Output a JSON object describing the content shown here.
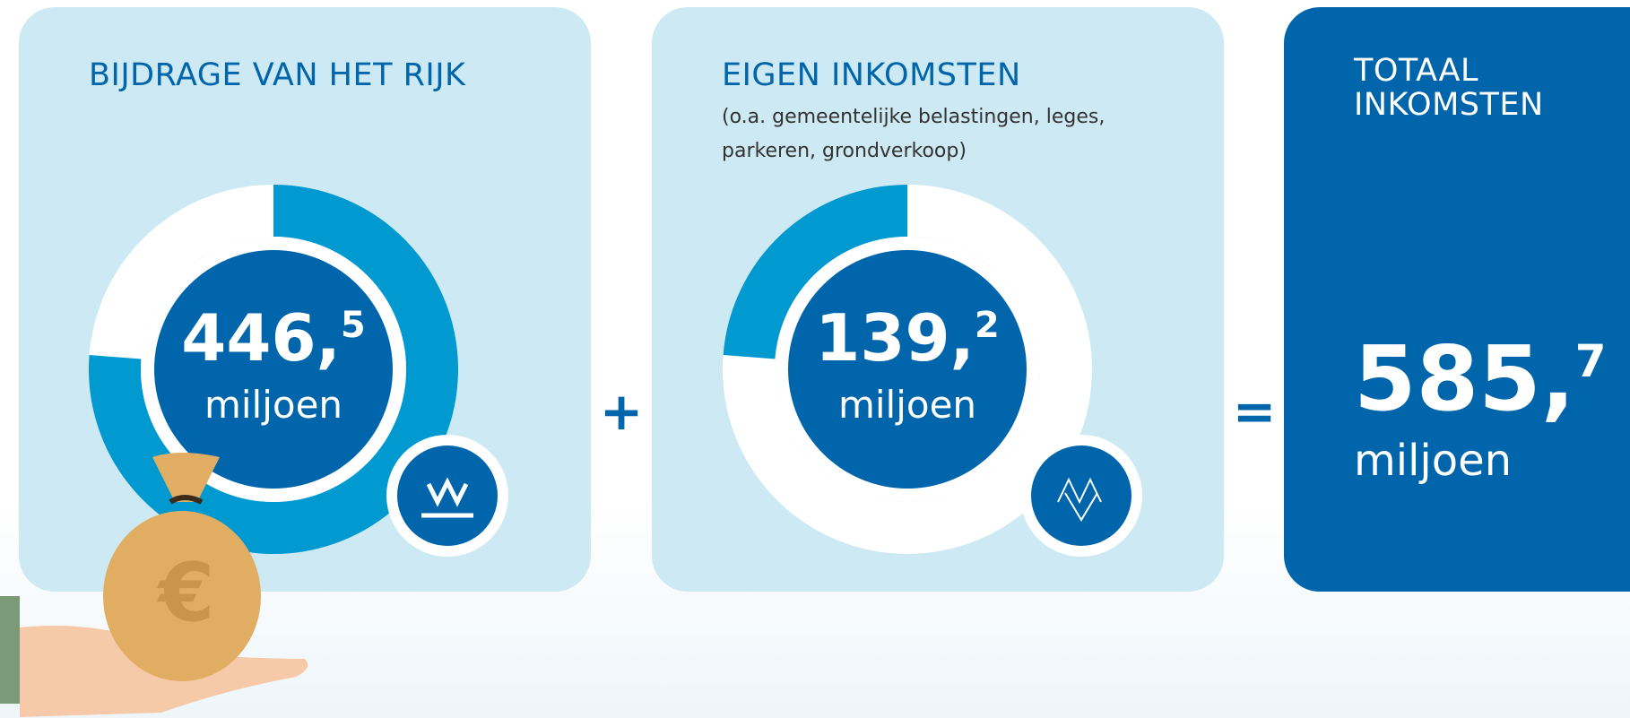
{
  "panels": [
    {
      "title": "BIJDRAGE VAN HET RIJK",
      "value": 446.5,
      "value_label": "446,5",
      "unit": "miljoen"
    },
    {
      "title": "EIGEN INKOMSTEN",
      "subtitle": "(o.a. gemeentelijke belastingen, leges, parkeren, grondverkoop)",
      "value": 139.2,
      "value_label": "139,2",
      "unit": "miljoen"
    }
  ],
  "operators": [
    "+",
    "="
  ],
  "total": {
    "title": "TOTAAL INKOMSTEN",
    "value": 585.7,
    "value_label": "585,7",
    "unit": "miljoen"
  }
}
